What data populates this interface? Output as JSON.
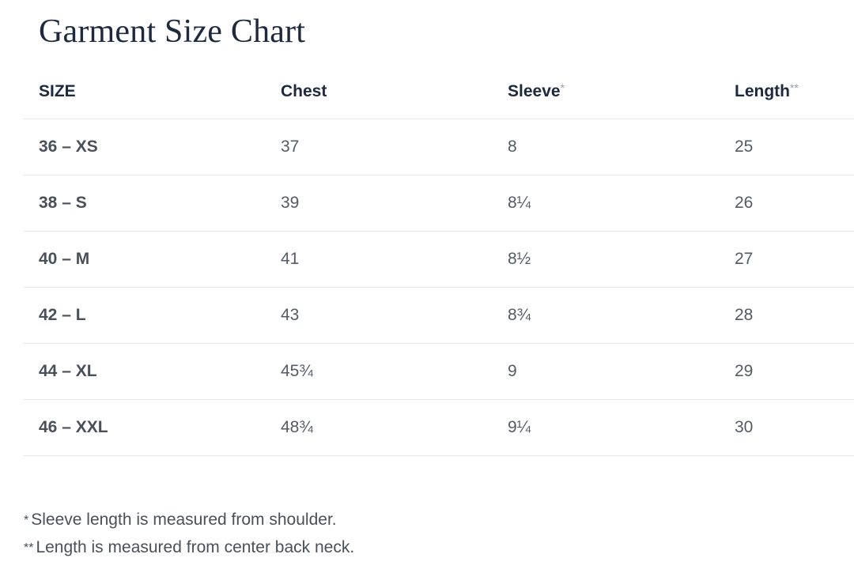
{
  "title": "Garment Size Chart",
  "columns": [
    {
      "label": "SIZE",
      "mark": ""
    },
    {
      "label": "Chest",
      "mark": ""
    },
    {
      "label": "Sleeve",
      "mark": "*"
    },
    {
      "label": "Length",
      "mark": "**"
    }
  ],
  "rows": [
    {
      "size": "36 – XS",
      "chest": "37",
      "sleeve": "8",
      "length": "25"
    },
    {
      "size": "38 – S",
      "chest": "39",
      "sleeve": "8¼",
      "length": "26"
    },
    {
      "size": "40 – M",
      "chest": "41",
      "sleeve": "8½",
      "length": "27"
    },
    {
      "size": "42 – L",
      "chest": "43",
      "sleeve": "8¾",
      "length": "28"
    },
    {
      "size": "44 – XL",
      "chest": "45¾",
      "sleeve": "9",
      "length": "29"
    },
    {
      "size": "46 – XXL",
      "chest": "48¾",
      "sleeve": "9¼",
      "length": "30"
    }
  ],
  "notes": [
    {
      "mark": "*",
      "text": "Sleeve length is measured from shoulder."
    },
    {
      "mark": "**",
      "text": "Length is measured from center back neck."
    }
  ],
  "colors": {
    "heading": "#1c2940",
    "body_text": "#555b66",
    "divider": "#e4e6ea",
    "footnote_mark": "#9aa0a8"
  }
}
